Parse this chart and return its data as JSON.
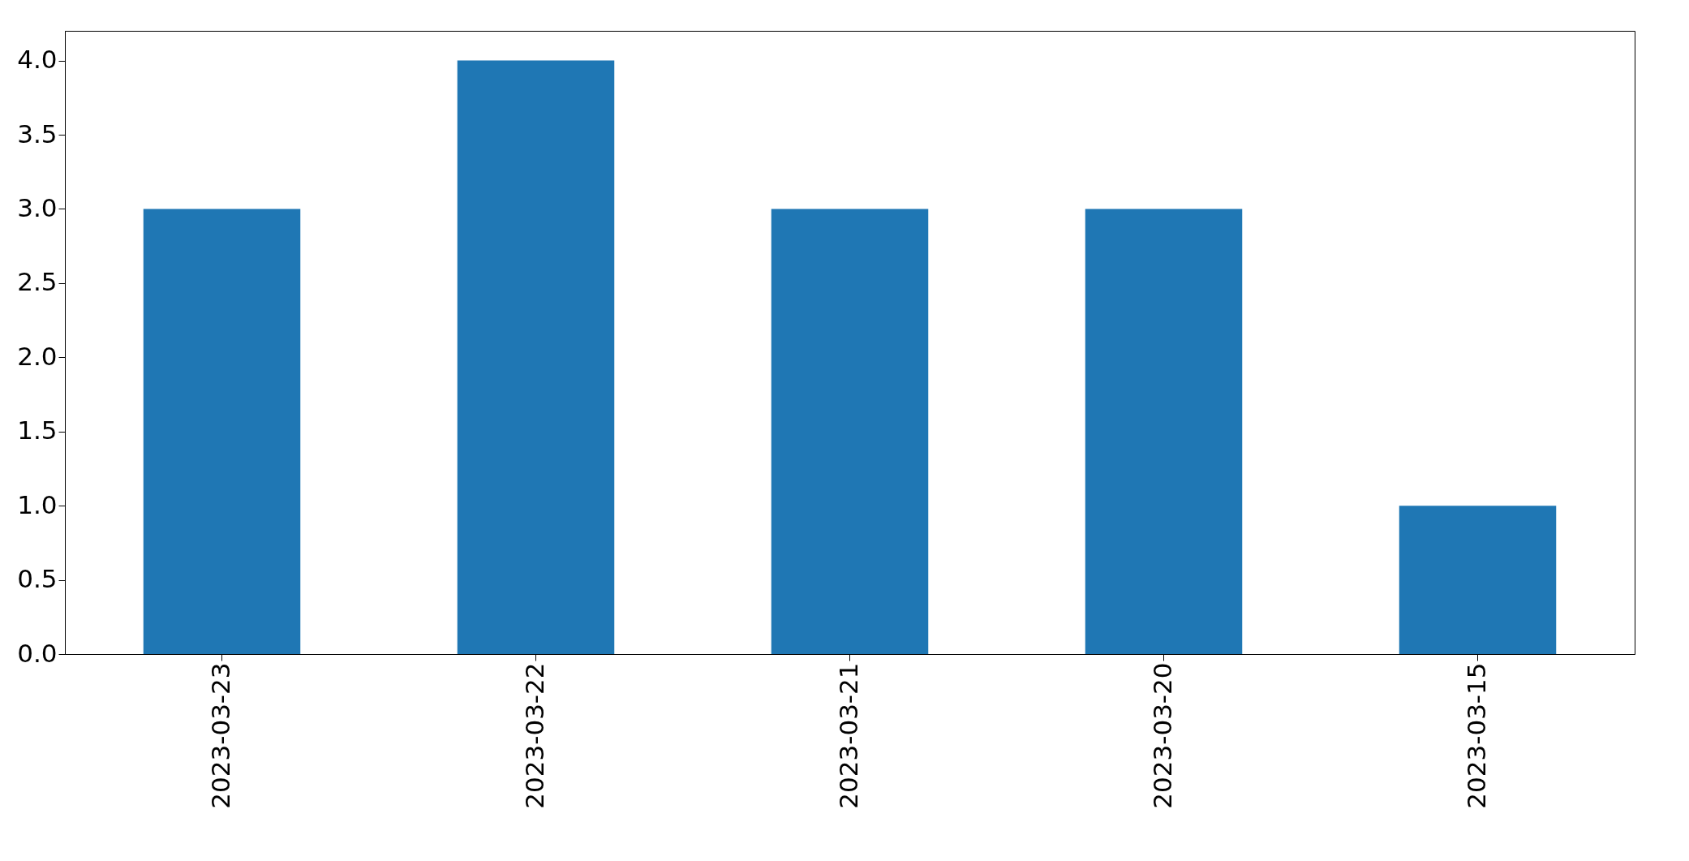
{
  "chart_data": {
    "type": "bar",
    "categories": [
      "2023-03-23",
      "2023-03-22",
      "2023-03-21",
      "2023-03-20",
      "2023-03-15"
    ],
    "values": [
      3,
      4,
      3,
      3,
      1
    ],
    "color": "#1f77b4",
    "ylim": [
      0,
      4.2
    ],
    "yticks": [
      {
        "value": 0,
        "label": "0.0"
      },
      0.5,
      {
        "value": 1,
        "label": "1.0"
      },
      1.5,
      {
        "value": 2,
        "label": "2.0"
      },
      2.5,
      {
        "value": 3,
        "label": "3.0"
      },
      3.5,
      {
        "value": 4,
        "label": "4.0"
      }
    ],
    "grid": false
  }
}
